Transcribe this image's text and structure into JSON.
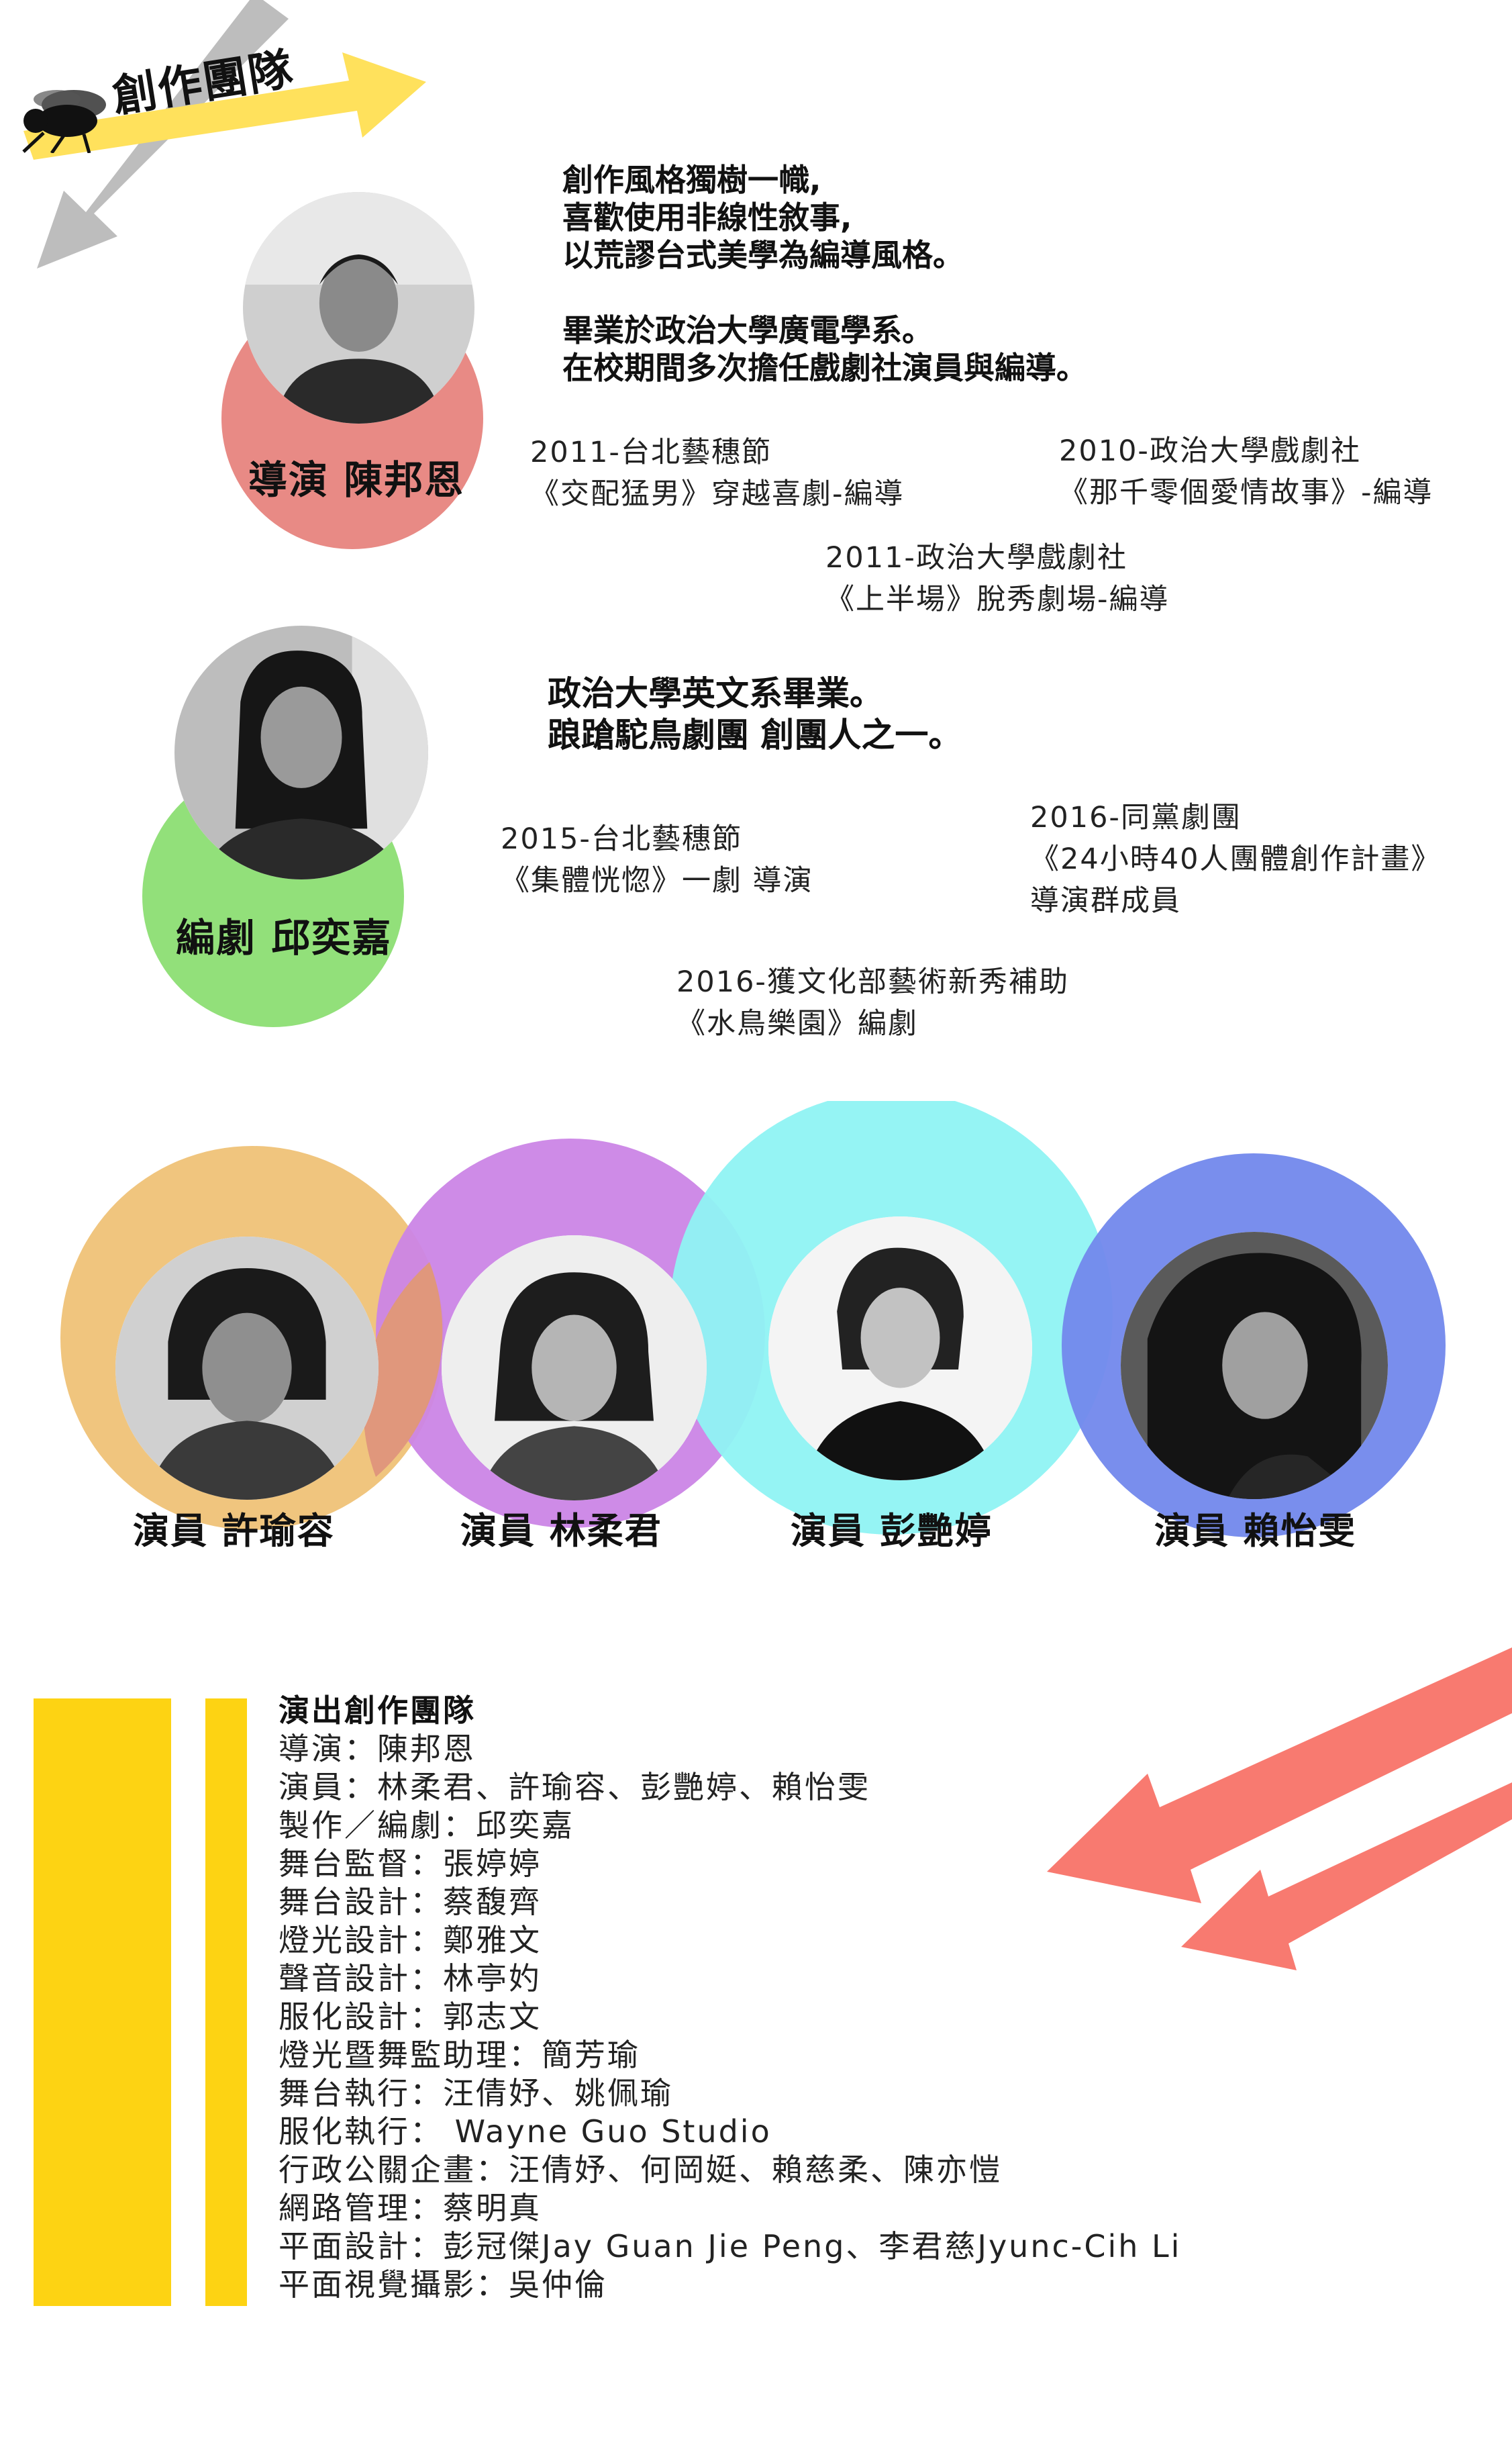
{
  "header": {
    "title": "創作團隊",
    "fly_icon": "fly-icon"
  },
  "colors": {
    "yellow": "#FFE15C",
    "gray": "#BDBDBD",
    "director_circle": "#E88A85",
    "writer_circle": "#92E07A",
    "actor1_circle": "#F0C57E",
    "actor2_circle": "#CB85E6",
    "actor3_circle": "#8FF3F3",
    "actor4_circle": "#7288EC",
    "bar_yellow": "#FDD313",
    "arrow_coral": "#F87A70"
  },
  "director": {
    "role": "導演 陳邦恩",
    "bio": [
      "創作風格獨樹一幟,",
      "喜歡使用非線性敘事,",
      "以荒謬台式美學為編導風格。",
      "",
      "畢業於政治大學廣電學系。",
      "在校期間多次擔任戲劇社演員與編導。"
    ],
    "credits": [
      [
        "2011-台北藝穗節",
        "《交配猛男》穿越喜劇-編導"
      ],
      [
        "2010-政治大學戲劇社",
        "《那千零個愛情故事》-編導"
      ],
      [
        "2011-政治大學戲劇社",
        "《上半場》脫秀劇場-編導"
      ]
    ]
  },
  "writer": {
    "role": "編劇 邱奕嘉",
    "bio": [
      "政治大學英文系畢業。",
      "踉蹌駝鳥劇團 創團人之一。"
    ],
    "credits": [
      [
        "2015-台北藝穗節",
        "《集體恍惚》一劇 導演"
      ],
      [
        "2016-同黨劇團",
        "《24小時40人團體創作計畫》",
        "導演群成員"
      ],
      [
        "2016-獲文化部藝術新秀補助",
        "《水鳥樂園》編劇"
      ]
    ]
  },
  "actors": [
    {
      "role": "演員 許瑜容"
    },
    {
      "role": "演員 林柔君"
    },
    {
      "role": "演員 彭艷婷"
    },
    {
      "role": "演員 賴怡雯"
    }
  ],
  "team": {
    "heading": "演出創作團隊",
    "lines": [
      "導演：陳邦恩",
      "演員：林柔君、許瑜容、彭艷婷、賴怡雯",
      "製作／編劇：邱奕嘉",
      "舞台監督：張婷婷",
      "舞台設計：蔡馥齊",
      "燈光設計：鄭雅文",
      "聲音設計：林亭妁",
      "服化設計：郭志文",
      "燈光暨舞監助理：簡芳瑜",
      "舞台執行：汪倩妤、姚佩瑜",
      "服化執行： Wayne Guo Studio",
      "行政公關企畫：汪倩妤、何岡娗、賴慈柔、陳亦愷",
      "網路管理：蔡明真",
      "平面設計：彭冠傑Jay Guan Jie Peng、李君慈Jyunc-Cih Li",
      "平面視覺攝影：吳仲倫"
    ]
  }
}
